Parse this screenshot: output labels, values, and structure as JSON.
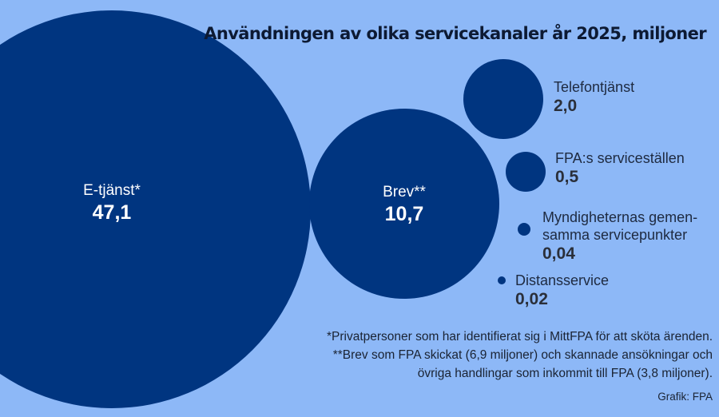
{
  "chart_data": {
    "type": "bubble",
    "title": "Användningen av olika servicekanaler år 2025, miljoner",
    "unit": "miljoner",
    "series": [
      {
        "name": "E-tjänst*",
        "value": 47.1,
        "value_label": "47,1"
      },
      {
        "name": "Brev**",
        "value": 10.7,
        "value_label": "10,7"
      },
      {
        "name": "Telefontjänst",
        "value": 2.0,
        "value_label": "2,0"
      },
      {
        "name": "FPA:s serviceställen",
        "value": 0.5,
        "value_label": "0,5"
      },
      {
        "name_lines": [
          "Myndigheternas gemen-",
          "samma servicepunkter"
        ],
        "value": 0.04,
        "value_label": "0,04"
      },
      {
        "name": "Distansservice",
        "value": 0.02,
        "value_label": "0,02"
      }
    ],
    "footnotes": [
      "*Privatpersoner som har identifierat sig i MittFPA för att sköta ärenden.",
      "**Brev som FPA skickat (6,9 miljoner) och skannade ansökningar och",
      "övriga handlingar som inkommit till FPA (3,8 miljoner)."
    ],
    "source": "Grafik: FPA"
  },
  "colors": {
    "background": "#8db8f7",
    "bubble": "#003580"
  }
}
